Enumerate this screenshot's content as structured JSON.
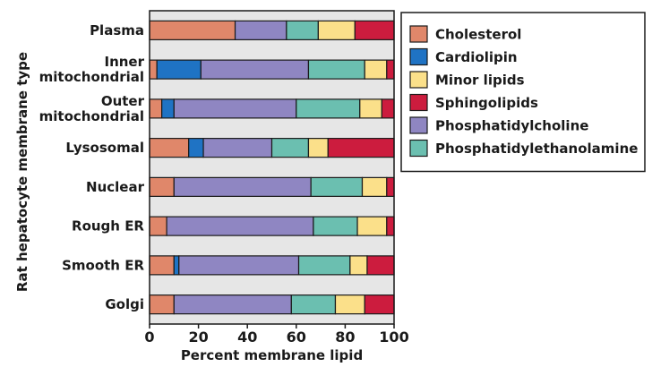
{
  "chart_data": {
    "type": "bar",
    "orientation": "horizontal",
    "stacked": true,
    "xlabel": "Percent membrane lipid",
    "ylabel": "Rat hepatocyte membrane type",
    "xlim": [
      0,
      100
    ],
    "xticks": [
      0,
      20,
      40,
      60,
      80,
      100
    ],
    "grid": false,
    "legend_position": "right",
    "categories": [
      [
        "Plasma"
      ],
      [
        "Inner",
        "mitochondrial"
      ],
      [
        "Outer",
        "mitochondrial"
      ],
      [
        "Lysosomal"
      ],
      [
        "Nuclear"
      ],
      [
        "Rough ER"
      ],
      [
        "Smooth ER"
      ],
      [
        "Golgi"
      ]
    ],
    "series": [
      {
        "name": "Cholesterol",
        "color": "#e0876a",
        "values": [
          35,
          3,
          5,
          16,
          10,
          7,
          10,
          10
        ]
      },
      {
        "name": "Cardiolipin",
        "color": "#1f73c4",
        "values": [
          0,
          18,
          5,
          6,
          0,
          0,
          2,
          0
        ]
      },
      {
        "name": "Phosphatidylcholine",
        "color": "#8f86c2",
        "values": [
          21,
          44,
          50,
          28,
          56,
          60,
          49,
          48
        ]
      },
      {
        "name": "Phosphatidylethanolamine",
        "color": "#6bbfb0",
        "values": [
          13,
          23,
          26,
          15,
          21,
          18,
          21,
          18
        ]
      },
      {
        "name": "Minor lipids",
        "color": "#fbe08a",
        "values": [
          15,
          9,
          9,
          8,
          10,
          12,
          7,
          12
        ]
      },
      {
        "name": "Sphingolipids",
        "color": "#cc1c3e",
        "values": [
          16,
          3,
          5,
          27,
          3,
          3,
          11,
          12
        ]
      }
    ],
    "legend_order": [
      "Cholesterol",
      "Cardiolipin",
      "Minor lipids",
      "Sphingolipids",
      "Phosphatidylcholine",
      "Phosphatidylethanolamine"
    ],
    "background_color": "#e6e6e6"
  }
}
